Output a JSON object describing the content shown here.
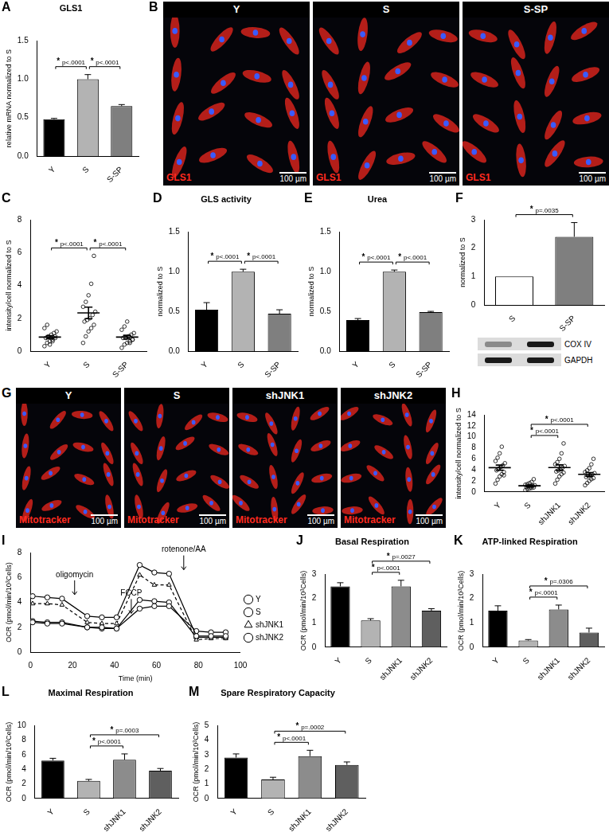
{
  "chart_data": [
    {
      "panel": "A",
      "type": "bar",
      "title": "GLS1",
      "y_label": "relative mRNA normalized to S",
      "categories": [
        "Y",
        "S",
        "S-SP"
      ],
      "values": [
        0.48,
        1.0,
        0.65
      ],
      "errors": [
        0.01,
        0.06,
        0.02
      ],
      "colors": [
        "#000000",
        "#b3b3b3",
        "#7f7f7f"
      ],
      "ylim": [
        0,
        1.5
      ],
      "yticks": [
        {
          "value": 0,
          "label": "0.0"
        },
        {
          "value": 0.5,
          "label": "0.5"
        },
        {
          "value": 1,
          "label": "1.0"
        },
        {
          "value": 1.5,
          "label": "1.5"
        }
      ],
      "grid": false,
      "comparisons": [
        {
          "pair": [
            "Y",
            "S"
          ],
          "star": "*",
          "p": "p<.0001"
        },
        {
          "pair": [
            "S",
            "S-SP"
          ],
          "star": "*",
          "p": "p<.0001"
        }
      ]
    },
    {
      "panel": "B",
      "type": "image",
      "panels": [
        "Y",
        "S",
        "S-SP"
      ],
      "stain": "GLS1",
      "color": "#ff2a1f",
      "scale_bar": "100 µm"
    },
    {
      "panel": "C",
      "type": "dot_plot",
      "y_label": "intensity/cell normalized to S",
      "categories": [
        "Y",
        "S",
        "S-SP"
      ],
      "color": "#000000",
      "points": [
        [
          0.3,
          0.5,
          0.6,
          0.7,
          0.8,
          0.8,
          0.9,
          1.0,
          1.1,
          1.2,
          1.4,
          1.6,
          0.4,
          0.6,
          0.9
        ],
        [
          0.5,
          0.9,
          1.2,
          1.4,
          1.6,
          1.8,
          1.9,
          2.0,
          2.2,
          2.4,
          2.7,
          3.0,
          3.4,
          4.1,
          5.8
        ],
        [
          0.2,
          0.4,
          0.5,
          0.6,
          0.7,
          0.8,
          0.8,
          0.9,
          1.0,
          1.1,
          1.3,
          1.5,
          1.8,
          0.5,
          0.7
        ]
      ],
      "ylim": [
        0,
        8
      ],
      "yticks": [
        0,
        2,
        4,
        6,
        8
      ],
      "grid": false,
      "comparisons": [
        {
          "pair": [
            "Y",
            "S"
          ],
          "star": "*",
          "p": "p<.0001"
        },
        {
          "pair": [
            "S",
            "S-SP"
          ],
          "star": "*",
          "p": "p<.0001"
        }
      ]
    },
    {
      "panel": "D",
      "type": "bar",
      "title": "GLS activity",
      "y_label": "normalized to S",
      "categories": [
        "Y",
        "S",
        "S-SP"
      ],
      "values": [
        0.52,
        1.0,
        0.47
      ],
      "errors": [
        0.09,
        0.03,
        0.05
      ],
      "colors": [
        "#000000",
        "#b3b3b3",
        "#7f7f7f"
      ],
      "ylim": [
        0,
        1.5
      ],
      "yticks": [
        {
          "value": 0,
          "label": "0.0"
        },
        {
          "value": 0.5,
          "label": "0.5"
        },
        {
          "value": 1,
          "label": "1.0"
        },
        {
          "value": 1.5,
          "label": "1.5"
        }
      ],
      "grid": false,
      "comparisons": [
        {
          "pair": [
            "Y",
            "S"
          ],
          "star": "*",
          "p": "p<.0001"
        },
        {
          "pair": [
            "S",
            "S-SP"
          ],
          "star": "*",
          "p": "p<.0001"
        }
      ]
    },
    {
      "panel": "E",
      "type": "bar",
      "title": "Urea",
      "y_label": "normalized to S",
      "categories": [
        "Y",
        "S",
        "S-SP"
      ],
      "values": [
        0.39,
        1.0,
        0.49
      ],
      "errors": [
        0.02,
        0.02,
        0.01
      ],
      "colors": [
        "#000000",
        "#b3b3b3",
        "#7f7f7f"
      ],
      "ylim": [
        0,
        1.5
      ],
      "yticks": [
        {
          "value": 0,
          "label": "0.0"
        },
        {
          "value": 0.5,
          "label": "0.5"
        },
        {
          "value": 1,
          "label": "1.0"
        },
        {
          "value": 1.5,
          "label": "1.5"
        }
      ],
      "grid": false,
      "comparisons": [
        {
          "pair": [
            "Y",
            "S"
          ],
          "star": "*",
          "p": "p<.0001"
        },
        {
          "pair": [
            "S",
            "S-SP"
          ],
          "star": "*",
          "p": "p<.0001"
        }
      ]
    },
    {
      "panel": "F",
      "type": "bar",
      "y_label": "normalized to S",
      "categories": [
        "S",
        "S-SP"
      ],
      "values": [
        1.0,
        2.4
      ],
      "errors": [
        0,
        0.5
      ],
      "colors": [
        "#ffffff",
        "#7f7f7f"
      ],
      "ylim": [
        0,
        3
      ],
      "yticks": [
        0,
        1,
        2,
        3
      ],
      "grid": false,
      "comparisons": [
        {
          "pair": [
            "S",
            "S-SP"
          ],
          "star": "*",
          "p": "p=.0035"
        }
      ],
      "blot_labels": [
        "COX IV",
        "GAPDH"
      ]
    },
    {
      "panel": "G",
      "type": "image",
      "panels": [
        "Y",
        "S",
        "shJNK1",
        "shJNK2"
      ],
      "stain": "Mitotracker",
      "color": "#ff2a1f",
      "scale_bar": "100 µm"
    },
    {
      "panel": "H",
      "type": "dot_plot",
      "y_label": "intensity/cell normalized to S",
      "categories": [
        "Y",
        "S",
        "shJNK1",
        "shJNK2"
      ],
      "color": "#000000",
      "points": [
        [
          1.5,
          2.2,
          2.8,
          3.2,
          3.6,
          3.9,
          4.2,
          4.5,
          4.8,
          5.2,
          5.6,
          6.2,
          7.0,
          8.2,
          3.0
        ],
        [
          0.3,
          0.5,
          0.6,
          0.7,
          0.8,
          0.9,
          1.0,
          1.0,
          1.1,
          1.2,
          1.3,
          1.4,
          1.6,
          1.8,
          2.3
        ],
        [
          1.5,
          2.2,
          2.8,
          3.2,
          3.5,
          3.7,
          3.9,
          4.1,
          4.4,
          4.7,
          5.0,
          5.4,
          6.0,
          7.0,
          8.8
        ],
        [
          1.2,
          1.6,
          2.0,
          2.3,
          2.5,
          2.7,
          2.9,
          3.0,
          3.2,
          3.4,
          3.6,
          3.9,
          4.3,
          5.0,
          6.0
        ]
      ],
      "ylim": [
        0,
        14
      ],
      "yticks": [
        0,
        2,
        4,
        6,
        8,
        10,
        12,
        14
      ],
      "grid": false,
      "comparisons": [
        {
          "pair": [
            "S",
            "shJNK1"
          ],
          "star": "*",
          "p": "p<.0001"
        },
        {
          "pair": [
            "S",
            "shJNK2"
          ],
          "star": "*",
          "p": "p<.0001"
        }
      ]
    },
    {
      "panel": "I",
      "type": "line",
      "x_label": "Time (min)",
      "y_label": "OCR (pmol/min/10³Cells)",
      "x": [
        1,
        8,
        15,
        27,
        34,
        41,
        52,
        59,
        66,
        79,
        86,
        93
      ],
      "series": [
        {
          "name": "Y",
          "color": "#000000",
          "marker": "circle",
          "line_style": "solid",
          "values": [
            4.5,
            4.4,
            4.3,
            2.9,
            2.8,
            2.8,
            7.0,
            6.4,
            6.3,
            1.3,
            1.3,
            1.3
          ]
        },
        {
          "name": "S",
          "color": "#000000",
          "marker": "circle",
          "line_style": "solid",
          "values": [
            2.4,
            2.3,
            2.3,
            2.0,
            2.0,
            1.9,
            3.5,
            3.7,
            3.7,
            1.7,
            1.6,
            1.6
          ]
        },
        {
          "name": "shJNK1",
          "color": "#000000",
          "marker": "triangle",
          "line_style": "dashed",
          "values": [
            3.9,
            3.9,
            3.8,
            2.4,
            2.3,
            2.3,
            6.2,
            5.4,
            5.4,
            1.0,
            1.1,
            1.1
          ]
        },
        {
          "name": "shJNK2",
          "color": "#000000",
          "marker": "circle",
          "line_style": "solid",
          "values": [
            2.5,
            2.4,
            2.4,
            2.0,
            1.9,
            1.9,
            4.2,
            4.1,
            4.0,
            1.2,
            1.2,
            1.2
          ]
        }
      ],
      "xlim": [
        0,
        100
      ],
      "xticks": [
        0,
        20,
        40,
        60,
        80,
        100
      ],
      "ylim": [
        0,
        8
      ],
      "yticks": [
        0,
        2,
        4,
        6,
        8
      ],
      "grid": false,
      "legend": "right",
      "injections": [
        {
          "label": "oligomycin",
          "x": 21
        },
        {
          "label": "FCCP",
          "x": 48
        },
        {
          "label": "rotenone/AA",
          "x": 73
        }
      ]
    },
    {
      "panel": "J",
      "type": "bar",
      "title": "Basal Respiration",
      "y_label": "OCR (pmol/min/10³Cells)",
      "categories": [
        "Y",
        "S",
        "shJNK1",
        "shJNK2"
      ],
      "values": [
        2.5,
        1.1,
        2.5,
        1.5
      ],
      "errors": [
        0.15,
        0.07,
        0.25,
        0.08
      ],
      "colors": [
        "#000000",
        "#b3b3b3",
        "#8c8c8c",
        "#5f5f5f"
      ],
      "ylim": [
        0,
        3
      ],
      "yticks": [
        0,
        1,
        2,
        3
      ],
      "grid": false,
      "comparisons": [
        {
          "pair": [
            "S",
            "shJNK1"
          ],
          "star": "*",
          "p": "p<.0001"
        },
        {
          "pair": [
            "S",
            "shJNK2"
          ],
          "star": "*",
          "p": "p=.0027"
        }
      ]
    },
    {
      "panel": "K",
      "type": "bar",
      "title": "ATP-linked Respiration",
      "y_label": "OCR (pmol/min/10³Cells)",
      "categories": [
        "Y",
        "S",
        "shJNK1",
        "shJNK2"
      ],
      "values": [
        1.5,
        0.27,
        1.55,
        0.6
      ],
      "errors": [
        0.2,
        0.04,
        0.18,
        0.18
      ],
      "colors": [
        "#000000",
        "#b3b3b3",
        "#8c8c8c",
        "#5f5f5f"
      ],
      "ylim": [
        0,
        3
      ],
      "yticks": [
        0,
        1,
        2,
        3
      ],
      "grid": false,
      "comparisons": [
        {
          "pair": [
            "S",
            "shJNK1"
          ],
          "star": "*",
          "p": "p<.0001"
        },
        {
          "pair": [
            "S",
            "shJNK2"
          ],
          "star": "*",
          "p": "p=.0306"
        }
      ]
    },
    {
      "panel": "L",
      "type": "bar",
      "title": "Maximal Respiration",
      "y_label": "OCR (pmol/min/10³Cells)",
      "categories": [
        "Y",
        "S",
        "shJNK1",
        "shJNK2"
      ],
      "values": [
        5.2,
        2.4,
        5.3,
        3.8
      ],
      "errors": [
        0.3,
        0.2,
        0.8,
        0.3
      ],
      "colors": [
        "#000000",
        "#b3b3b3",
        "#8c8c8c",
        "#5f5f5f"
      ],
      "ylim": [
        0,
        10
      ],
      "yticks": [
        0,
        2,
        4,
        6,
        8,
        10
      ],
      "grid": false,
      "comparisons": [
        {
          "pair": [
            "S",
            "shJNK1"
          ],
          "star": "*",
          "p": "p<.0001"
        },
        {
          "pair": [
            "S",
            "shJNK2"
          ],
          "star": "*",
          "p": "p=.0003"
        }
      ]
    },
    {
      "panel": "M",
      "type": "bar",
      "title": "Spare Respiratory Capacity",
      "y_label": "OCR (pmol/min/10³Cells)",
      "categories": [
        "Y",
        "S",
        "shJNK1",
        "shJNK2"
      ],
      "values": [
        2.8,
        1.3,
        2.9,
        2.3
      ],
      "errors": [
        0.25,
        0.15,
        0.4,
        0.2
      ],
      "colors": [
        "#000000",
        "#b3b3b3",
        "#8c8c8c",
        "#5f5f5f"
      ],
      "ylim": [
        0,
        5
      ],
      "yticks": [
        0,
        1,
        2,
        3,
        4,
        5
      ],
      "grid": false,
      "comparisons": [
        {
          "pair": [
            "S",
            "shJNK1"
          ],
          "star": "*",
          "p": "p<.0001"
        },
        {
          "pair": [
            "S",
            "shJNK2"
          ],
          "star": "*",
          "p": "p=.0002"
        }
      ]
    }
  ]
}
